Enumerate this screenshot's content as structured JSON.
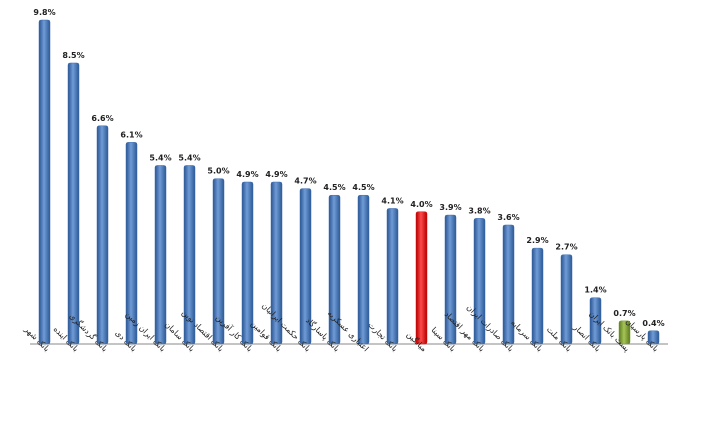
{
  "chart_data": {
    "type": "bar",
    "categories": [
      "بانک شهر",
      "بانک اینده",
      "بانک گردشگری",
      "بانک دی",
      "بانک ایران زمین",
      "بانک سامان",
      "بانک اقتصاد نوین",
      "بانک کار آفرین",
      "بانک قوامین",
      "بانک حکمت ایرانیان",
      "بانک پاسارگاد",
      "اعتباری عسکریه",
      "بانک تجارت",
      "میانگین",
      "بانک سینا",
      "بانک مهر اقتصاد",
      "بانک صادرات ایران",
      "بانک سرمایه",
      "بانک ملت",
      "بانک انصار",
      "پست بانک ایران",
      "بانک پارسیان"
    ],
    "values": [
      9.8,
      8.5,
      6.6,
      6.1,
      5.4,
      5.4,
      5.0,
      4.9,
      4.9,
      4.7,
      4.5,
      4.5,
      4.1,
      4.0,
      3.9,
      3.8,
      3.6,
      2.9,
      2.7,
      1.4,
      0.7,
      0.4
    ],
    "value_labels": [
      "9.8%",
      "8.5%",
      "6.6%",
      "6.1%",
      "5.4%",
      "5.4%",
      "5.0%",
      "4.9%",
      "4.9%",
      "4.7%",
      "4.5%",
      "4.5%",
      "4.1%",
      "4.0%",
      "3.9%",
      "3.8%",
      "3.6%",
      "2.9%",
      "2.7%",
      "1.4%",
      "0.7%",
      "0.4%"
    ],
    "bar_colors": [
      "#3d6fb0",
      "#3d6fb0",
      "#3d6fb0",
      "#3d6fb0",
      "#3d6fb0",
      "#3d6fb0",
      "#3d6fb0",
      "#3d6fb0",
      "#3d6fb0",
      "#3d6fb0",
      "#3d6fb0",
      "#3d6fb0",
      "#3d6fb0",
      "#e01010",
      "#3d6fb0",
      "#3d6fb0",
      "#3d6fb0",
      "#3d6fb0",
      "#3d6fb0",
      "#3d6fb0",
      "#7a9a2e",
      "#3d6fb0"
    ],
    "ylim": [
      0,
      10
    ],
    "grid": false,
    "legend": "none",
    "title": "",
    "xlabel": "",
    "ylabel": ""
  }
}
